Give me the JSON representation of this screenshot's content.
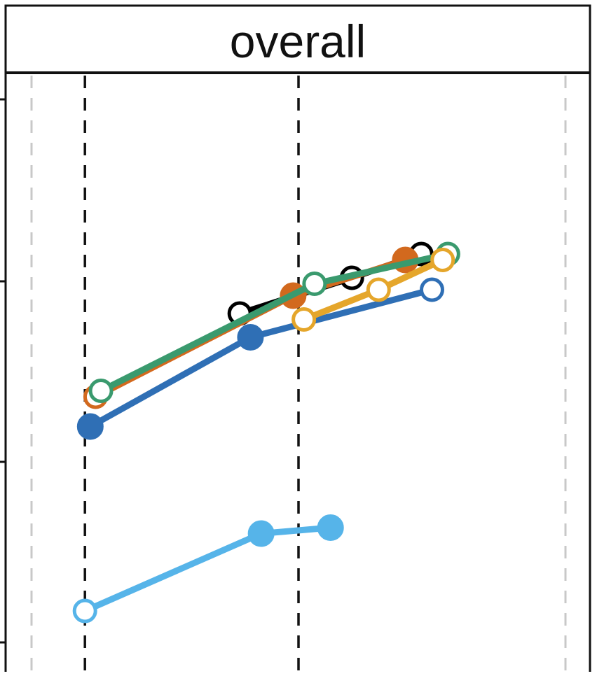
{
  "chart_data": {
    "type": "line",
    "title": "overall",
    "xlabel": "",
    "ylabel": "",
    "xlim": [
      0,
      10
    ],
    "ylim": [
      0,
      10
    ],
    "grid": false,
    "legend": "none",
    "reference_lines": {
      "gray_dashed_x": [
        0,
        10
      ],
      "black_dashed_x": [
        1,
        5
      ]
    },
    "series": [
      {
        "color": "#56b4e9",
        "marker": "circle",
        "points": [
          {
            "x": 1.0,
            "y": 1.0,
            "filled": false
          },
          {
            "x": 4.3,
            "y": 2.3,
            "filled": true
          },
          {
            "x": 5.6,
            "y": 2.4,
            "filled": true
          }
        ]
      },
      {
        "color": "#2f6fb5",
        "marker": "circle",
        "points": [
          {
            "x": 1.1,
            "y": 4.1,
            "filled": true
          },
          {
            "x": 4.1,
            "y": 5.6,
            "filled": true
          },
          {
            "x": 7.5,
            "y": 6.4,
            "filled": false
          }
        ]
      },
      {
        "color": "#000000",
        "marker": "circle",
        "points": [
          {
            "x": 3.9,
            "y": 6.0,
            "filled": false
          },
          {
            "x": 6.0,
            "y": 6.6,
            "filled": false
          },
          {
            "x": 7.3,
            "y": 7.0,
            "filled": false
          }
        ]
      },
      {
        "color": "#d2691e",
        "marker": "circle",
        "points": [
          {
            "x": 1.2,
            "y": 4.6,
            "filled": false
          },
          {
            "x": 4.9,
            "y": 6.3,
            "filled": true
          },
          {
            "x": 7.0,
            "y": 6.9,
            "filled": true
          }
        ]
      },
      {
        "color": "#3a9a6e",
        "marker": "circle",
        "points": [
          {
            "x": 1.3,
            "y": 4.7,
            "filled": false
          },
          {
            "x": 5.3,
            "y": 6.5,
            "filled": false
          },
          {
            "x": 7.8,
            "y": 7.0,
            "filled": false
          }
        ]
      },
      {
        "color": "#e5a62b",
        "marker": "circle",
        "points": [
          {
            "x": 5.1,
            "y": 5.9,
            "filled": false
          },
          {
            "x": 6.5,
            "y": 6.4,
            "filled": false
          },
          {
            "x": 7.7,
            "y": 6.9,
            "filled": false
          }
        ]
      }
    ]
  }
}
